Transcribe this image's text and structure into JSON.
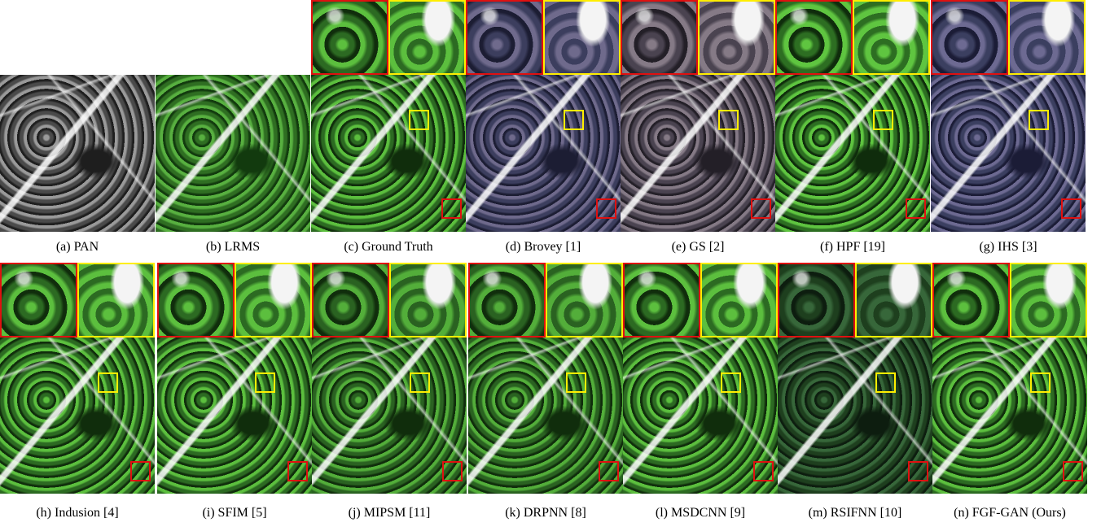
{
  "panels": [
    {
      "label": "(a) PAN"
    },
    {
      "label": "(b) LRMS"
    },
    {
      "label": "(c) Ground Truth"
    },
    {
      "label": "(d) Brovey [1]"
    },
    {
      "label": "(e) GS [2]"
    },
    {
      "label": "(f) HPF [19]"
    },
    {
      "label": "(g) IHS [3]"
    },
    {
      "label": "(h) Indusion [4]"
    },
    {
      "label": "(i) SFIM [5]"
    },
    {
      "label": "(j) MIPSM [11]"
    },
    {
      "label": "(k) DRPNN [8]"
    },
    {
      "label": "(l) MSDCNN [9]"
    },
    {
      "label": "(m) RSIFNN [10]"
    },
    {
      "label": "(n) FGF-GAN (Ours)"
    }
  ]
}
